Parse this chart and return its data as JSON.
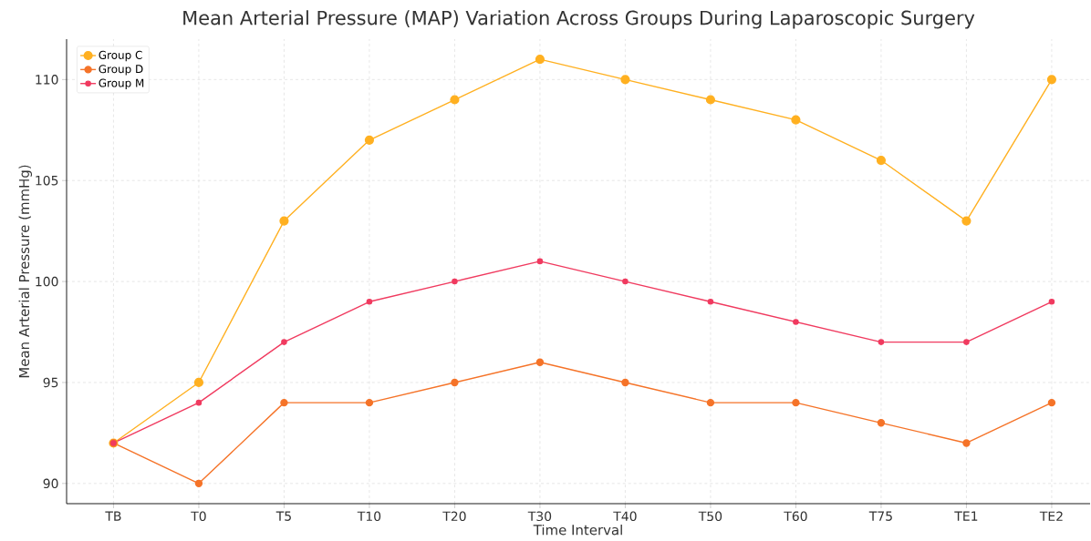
{
  "chart_data": {
    "type": "line",
    "title": "Mean Arterial Pressure (MAP) Variation Across Groups During Laparoscopic Surgery",
    "xlabel": "Time Interval",
    "ylabel": "Mean Arterial Pressure (mmHg)",
    "categories": [
      "TB",
      "T0",
      "T5",
      "T10",
      "T20",
      "T30",
      "T40",
      "T50",
      "T60",
      "T75",
      "TE1",
      "TE2"
    ],
    "series": [
      {
        "name": "Group C",
        "color": "#ffb020",
        "values": [
          92,
          95,
          103,
          107,
          109,
          111,
          110,
          109,
          108,
          106,
          103,
          110
        ]
      },
      {
        "name": "Group D",
        "color": "#f57328",
        "values": [
          92,
          90,
          94,
          94,
          95,
          96,
          95,
          94,
          94,
          93,
          92,
          94
        ]
      },
      {
        "name": "Group M",
        "color": "#f03a5f",
        "values": [
          92,
          94,
          97,
          99,
          100,
          101,
          100,
          99,
          98,
          97,
          97,
          99
        ]
      }
    ],
    "ylim": [
      89,
      112
    ],
    "yticks": [
      90,
      95,
      100,
      105,
      110
    ],
    "grid": true,
    "legend": "top left",
    "marker": "circle",
    "line_style": "solid"
  }
}
